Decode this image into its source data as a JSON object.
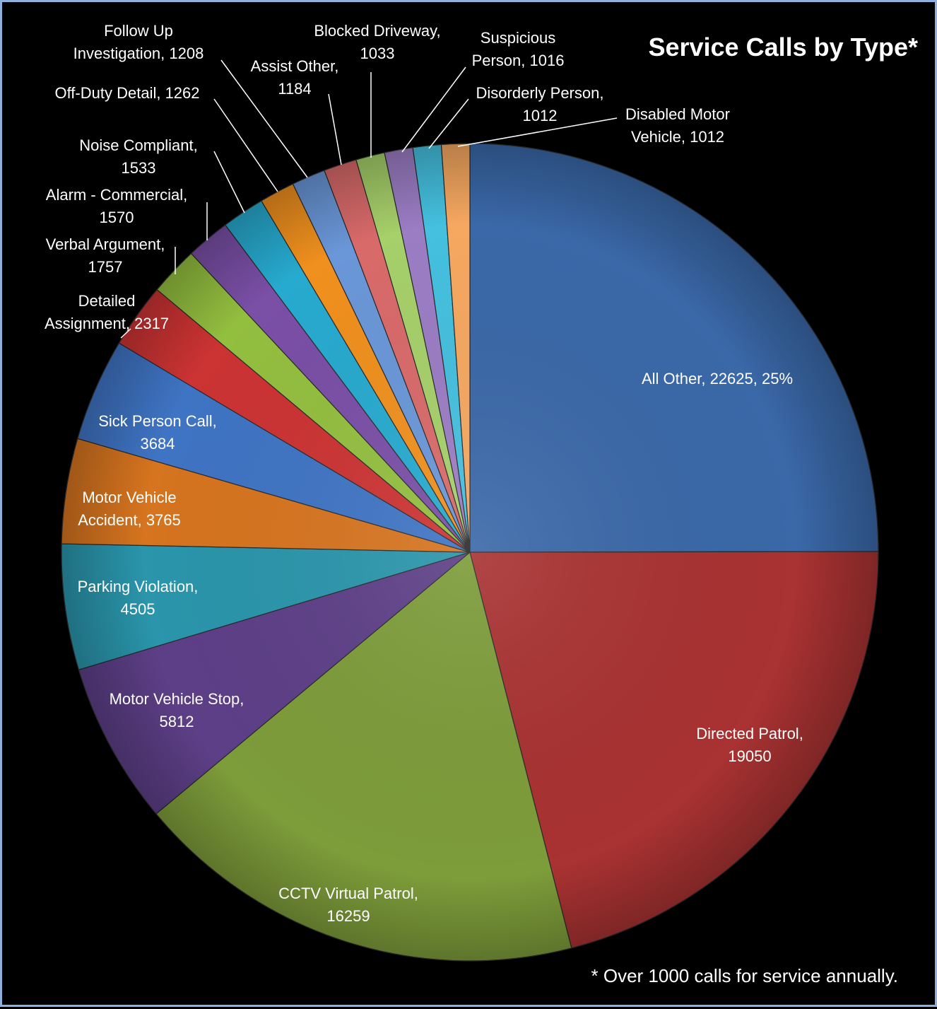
{
  "chart_data": {
    "type": "pie",
    "title": "Service Calls by Type*",
    "footnote": "* Over 1000 calls for service annually.",
    "slices": [
      {
        "name": "All Other",
        "value": 22625,
        "color": "#3a68a8",
        "label_lines": [
          "All Other, 22625, 25%"
        ]
      },
      {
        "name": "Directed Patrol",
        "value": 19050,
        "color": "#a93232",
        "label_lines": [
          "Directed Patrol,",
          "19050"
        ]
      },
      {
        "name": "CCTV Virtual Patrol",
        "value": 16259,
        "color": "#7d9c3a",
        "label_lines": [
          "CCTV Virtual Patrol,",
          "16259"
        ]
      },
      {
        "name": "Motor Vehicle Stop",
        "value": 5812,
        "color": "#5d3f87",
        "label_lines": [
          "Motor Vehicle Stop,",
          "5812"
        ]
      },
      {
        "name": "Parking Violation",
        "value": 4505,
        "color": "#2a95ab",
        "label_lines": [
          "Parking Violation,",
          "4505"
        ]
      },
      {
        "name": "Motor Vehicle Accident",
        "value": 3765,
        "color": "#d6741f",
        "label_lines": [
          "Motor Vehicle",
          "Accident, 3765"
        ]
      },
      {
        "name": "Sick Person Call",
        "value": 3684,
        "color": "#3f74c4",
        "label_lines": [
          "Sick Person Call,",
          "3684"
        ]
      },
      {
        "name": "Detailed Assignment",
        "value": 2317,
        "color": "#cc3333",
        "label_lines": [
          "Detailed",
          "Assignment, 2317"
        ]
      },
      {
        "name": "Verbal Argument",
        "value": 1757,
        "color": "#93bf3f",
        "label_lines": [
          "Verbal Argument,",
          "1757"
        ]
      },
      {
        "name": "Alarm - Commercial",
        "value": 1570,
        "color": "#7a4fa6",
        "label_lines": [
          "Alarm - Commercial,",
          "1570"
        ]
      },
      {
        "name": "Noise Compliant",
        "value": 1533,
        "color": "#27aacf",
        "label_lines": [
          "Noise Compliant,",
          "1533"
        ]
      },
      {
        "name": "Off-Duty Detail",
        "value": 1262,
        "color": "#f0901e",
        "label_lines": [
          "Off-Duty Detail, 1262"
        ]
      },
      {
        "name": "Follow Up Investigation",
        "value": 1208,
        "color": "#6a97d8",
        "label_lines": [
          "Follow Up",
          "Investigation, 1208"
        ]
      },
      {
        "name": "Assist Other",
        "value": 1184,
        "color": "#d96a6a",
        "label_lines": [
          "Assist Other,",
          "1184"
        ]
      },
      {
        "name": "Blocked Driveway",
        "value": 1033,
        "color": "#a6d06a",
        "label_lines": [
          "Blocked Driveway,",
          "1033"
        ]
      },
      {
        "name": "Suspicious Person",
        "value": 1016,
        "color": "#9b7dc4",
        "label_lines": [
          "Suspicious",
          "Person, 1016"
        ]
      },
      {
        "name": "Disorderly Person",
        "value": 1012,
        "color": "#45c0df",
        "label_lines": [
          "Disorderly Person,",
          "1012"
        ]
      },
      {
        "name": "Disabled Motor Vehicle",
        "value": 1012,
        "color": "#f6a860",
        "label_lines": [
          "Disabled Motor",
          "Vehicle, 1012"
        ]
      }
    ],
    "legend": "none",
    "start_angle_deg": 0,
    "direction": "clockwise"
  }
}
